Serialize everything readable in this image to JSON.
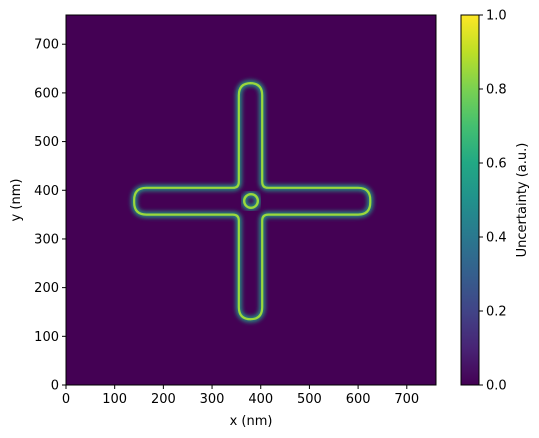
{
  "chart_data": {
    "type": "heatmap",
    "title": "",
    "xlabel": "x (nm)",
    "ylabel": "y (nm)",
    "xlim": [
      0,
      760
    ],
    "ylim": [
      0,
      760
    ],
    "x_ticks": [
      0,
      100,
      200,
      300,
      400,
      500,
      600,
      700
    ],
    "y_ticks": [
      0,
      100,
      200,
      300,
      400,
      500,
      600,
      700
    ],
    "x_tick_labels": [
      "0",
      "100",
      "200",
      "300",
      "400",
      "500",
      "600",
      "700"
    ],
    "y_tick_labels": [
      "0",
      "100",
      "200",
      "300",
      "400",
      "500",
      "600",
      "700"
    ],
    "colormap": "viridis",
    "colorbar": {
      "label": "Uncertainty (a.u.)",
      "range": [
        0.0,
        1.0
      ],
      "ticks": [
        0.0,
        0.2,
        0.4,
        0.6,
        0.8,
        1.0
      ],
      "tick_labels": [
        "0.0",
        "0.2",
        "0.4",
        "0.6",
        "0.8",
        "1.0"
      ]
    },
    "background_value": 0.0,
    "features": [
      {
        "shape": "horizontal-arm-outline",
        "x_range": [
          140,
          625
        ],
        "y_range": [
          350,
          405
        ],
        "corner_radius": 25,
        "value": 0.85
      },
      {
        "shape": "vertical-arm-outline",
        "x_range": [
          355,
          403
        ],
        "y_range": [
          135,
          620
        ],
        "corner_radius": 25,
        "value": 0.85
      },
      {
        "shape": "ring",
        "center": [
          380,
          378
        ],
        "radius": 14,
        "value": 0.85
      }
    ],
    "grid": false
  }
}
